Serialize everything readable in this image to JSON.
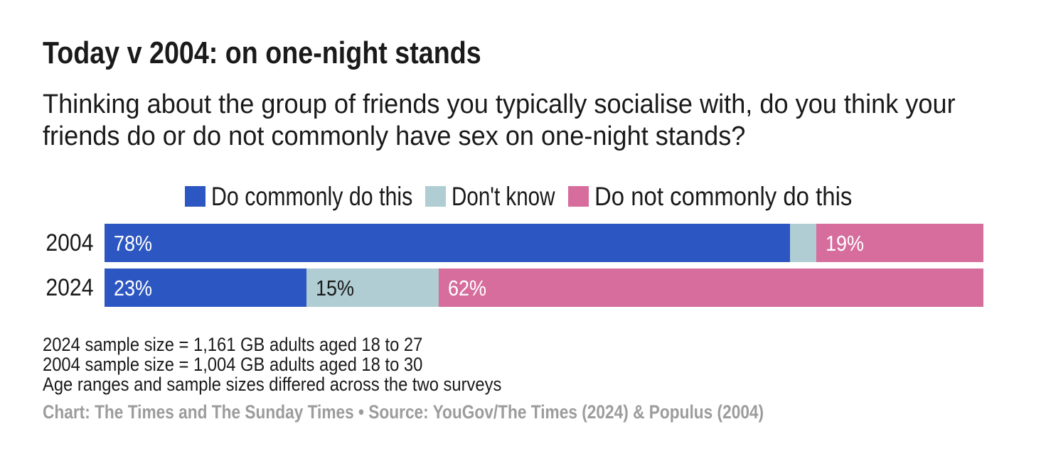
{
  "header": {
    "title": "Today v 2004: on one-night stands",
    "description_lines": [
      "Thinking about the group of friends you typically socialise with, do you think your",
      "friends do or do not commonly have sex on one-night stands?"
    ]
  },
  "chart_data": {
    "type": "bar",
    "variant": "horizontal-stacked",
    "unit": "%",
    "categories": [
      "2004",
      "2024"
    ],
    "series": [
      {
        "name": "Do commonly do this",
        "color": "#2c56c1",
        "label_color": "#ffffff",
        "values": [
          78,
          23
        ]
      },
      {
        "name": "Don't know",
        "color": "#afcdd3",
        "label_color": "#1a1a1a",
        "values": [
          3,
          15
        ]
      },
      {
        "name": "Do not commonly do this",
        "color": "#d66d9d",
        "label_color": "#ffffff",
        "values": [
          19,
          62
        ]
      }
    ],
    "value_label_format": "{v}%",
    "min_label_value": 10,
    "xlim": [
      0,
      100
    ],
    "legend_position": "top-center",
    "grid": false
  },
  "footer": {
    "notes": [
      "2024 sample size = 1,161 GB adults aged 18 to 27",
      "2004 sample size = 1,004 GB adults aged 18 to 30",
      "Age ranges and sample sizes differed across the two surveys"
    ],
    "credit": "Chart: The Times and The Sunday Times • Source: YouGov/The Times (2024) & Populus (2004)"
  }
}
